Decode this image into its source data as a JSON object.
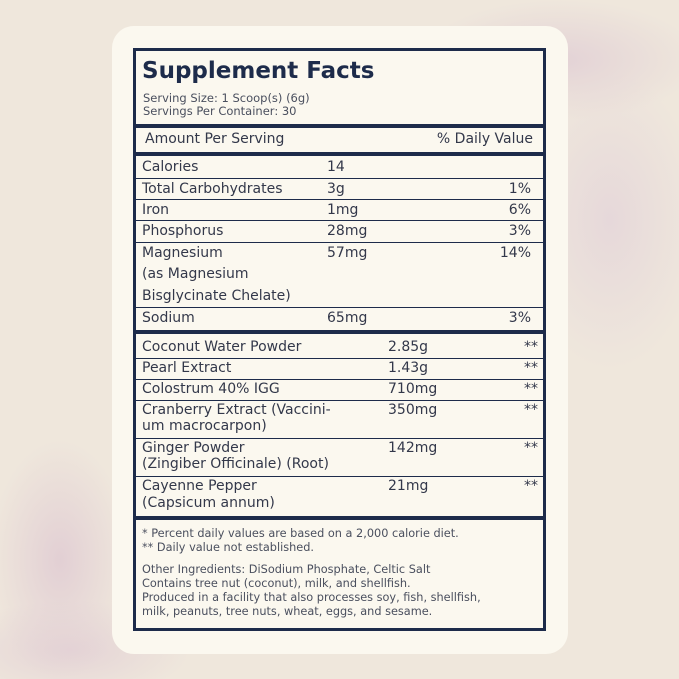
{
  "title": "Supplement Facts",
  "serving_size": "Serving Size: 1 Scoop(s) (6g)",
  "servings_per_container": "Servings Per Container: 30",
  "header": {
    "amount": "Amount Per Serving",
    "dv": "% Daily Value"
  },
  "nutrients": [
    {
      "name": "Calories",
      "amount": "14",
      "dv": ""
    },
    {
      "name": "Total Carbohydrates",
      "amount": "3g",
      "dv": "1%"
    },
    {
      "name": "Iron",
      "amount": "1mg",
      "dv": "6%"
    },
    {
      "name": "Phosphorus",
      "amount": "28mg",
      "dv": "3%"
    },
    {
      "name": "Magnesium",
      "name2": "(as Magnesium",
      "name3": "Bisglycinate Chelate)",
      "amount": "57mg",
      "dv": "14%"
    },
    {
      "name": "Sodium",
      "amount": "65mg",
      "dv": "3%"
    }
  ],
  "ingredients": [
    {
      "name": "Coconut Water Powder",
      "amount": "2.85g",
      "dv": "**"
    },
    {
      "name": "Pearl Extract",
      "amount": "1.43g",
      "dv": "**"
    },
    {
      "name": "Colostrum 40% IGG",
      "amount": "710mg",
      "dv": "**"
    },
    {
      "name": "Cranberry Extract (Vaccini-",
      "name2": "um macrocarpon)",
      "amount": "350mg",
      "dv": "**"
    },
    {
      "name": "Ginger Powder",
      "name2": "(Zingiber Officinale) (Root)",
      "amount": "142mg",
      "dv": "**"
    },
    {
      "name": "Cayenne Pepper",
      "name2": "(Capsicum annum)",
      "amount": "21mg",
      "dv": "**"
    }
  ],
  "footnotes": [
    "* Percent daily values are based on a 2,000 calorie diet.",
    "** Daily value not established."
  ],
  "other": [
    "Other Ingredients: DiSodium Phosphate, Celtic Salt",
    "Contains tree nut (coconut), milk, and shellfish.",
    "Produced in a facility that also processes soy, fish, shellfish,",
    "milk, peanuts, tree nuts, wheat, eggs, and sesame."
  ]
}
